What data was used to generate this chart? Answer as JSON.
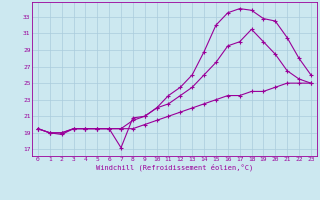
{
  "bg_color": "#cce8f0",
  "line_color": "#990099",
  "grid_color": "#aaccdd",
  "xlabel": "Windchill (Refroidissement éolien,°C)",
  "ylabel_ticks": [
    17,
    19,
    21,
    23,
    25,
    27,
    29,
    31,
    33
  ],
  "xticks": [
    0,
    1,
    2,
    3,
    4,
    5,
    6,
    7,
    8,
    9,
    10,
    11,
    12,
    13,
    14,
    15,
    16,
    17,
    18,
    19,
    20,
    21,
    22,
    23
  ],
  "xlim": [
    -0.5,
    23.5
  ],
  "ylim": [
    16.2,
    34.8
  ],
  "line1_x": [
    0,
    1,
    2,
    3,
    4,
    5,
    6,
    7,
    8,
    9,
    10,
    11,
    12,
    13,
    14,
    15,
    16,
    17,
    18,
    19,
    20,
    21,
    22,
    23
  ],
  "line1_y": [
    19.5,
    19.0,
    18.8,
    19.5,
    19.5,
    19.5,
    19.5,
    17.2,
    20.8,
    21.0,
    22.0,
    23.5,
    24.5,
    26.0,
    28.8,
    32.0,
    33.5,
    34.0,
    33.8,
    32.8,
    32.5,
    30.5,
    28.0,
    26.0
  ],
  "line2_x": [
    0,
    1,
    2,
    3,
    4,
    5,
    6,
    7,
    8,
    9,
    10,
    11,
    12,
    13,
    14,
    15,
    16,
    17,
    18,
    19,
    20,
    21,
    22,
    23
  ],
  "line2_y": [
    19.5,
    19.0,
    19.0,
    19.5,
    19.5,
    19.5,
    19.5,
    19.5,
    20.5,
    21.0,
    22.0,
    22.5,
    23.5,
    24.5,
    26.0,
    27.5,
    29.5,
    30.0,
    31.5,
    30.0,
    28.5,
    26.5,
    25.5,
    25.0
  ],
  "line3_x": [
    0,
    1,
    2,
    3,
    4,
    5,
    6,
    7,
    8,
    9,
    10,
    11,
    12,
    13,
    14,
    15,
    16,
    17,
    18,
    19,
    20,
    21,
    22,
    23
  ],
  "line3_y": [
    19.5,
    19.0,
    19.0,
    19.5,
    19.5,
    19.5,
    19.5,
    19.5,
    19.5,
    20.0,
    20.5,
    21.0,
    21.5,
    22.0,
    22.5,
    23.0,
    23.5,
    23.5,
    24.0,
    24.0,
    24.5,
    25.0,
    25.0,
    25.0
  ]
}
